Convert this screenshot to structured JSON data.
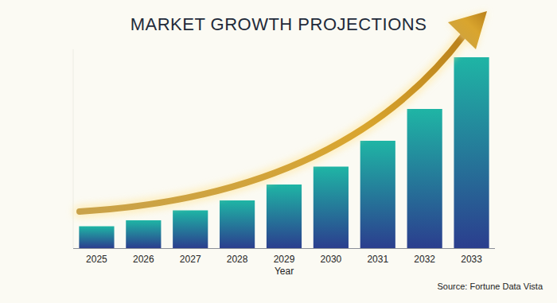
{
  "chart_data": {
    "type": "bar",
    "title": "MARKET GROWTH PROJECTIONS",
    "x_label": "Year",
    "categories": [
      "2025",
      "2026",
      "2027",
      "2028",
      "2029",
      "2030",
      "2031",
      "2032",
      "2033"
    ],
    "values": [
      11,
      14,
      19,
      24,
      32,
      41,
      54,
      70,
      96
    ],
    "color": "#1fb5a5",
    "ylim": [
      0,
      100
    ],
    "tick_labels": "x",
    "grid": false,
    "annotations": [
      "Source: Fortune Data Vista"
    ]
  }
}
